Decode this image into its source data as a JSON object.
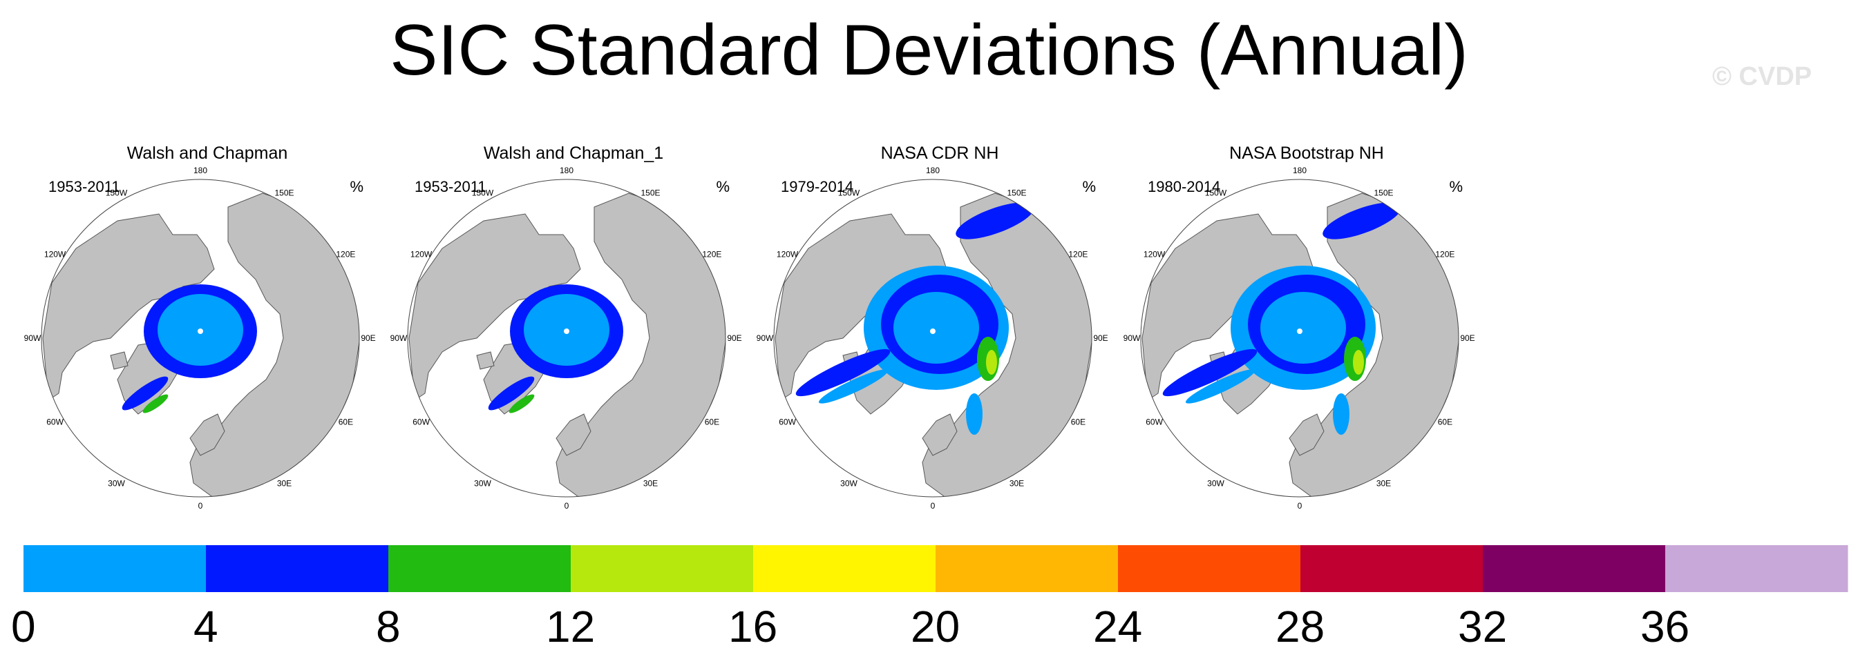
{
  "title": "SIC Standard Deviations (Annual)",
  "watermark": "© CVDP",
  "panels": [
    {
      "title": "Walsh and Chapman",
      "period": "1953-2011",
      "unit": "%"
    },
    {
      "title": "Walsh and Chapman_1",
      "period": "1953-2011",
      "unit": "%"
    },
    {
      "title": "NASA CDR NH",
      "period": "1979-2014",
      "unit": "%"
    },
    {
      "title": "NASA Bootstrap NH",
      "period": "1980-2014",
      "unit": "%"
    }
  ],
  "longitude_labels": [
    "180",
    "150E",
    "120E",
    "90E",
    "60E",
    "30E",
    "0",
    "30W",
    "60W",
    "90W",
    "120W",
    "150W"
  ],
  "colorbar": {
    "levels": [
      "0",
      "4",
      "8",
      "12",
      "16",
      "20",
      "24",
      "28",
      "32",
      "36"
    ],
    "colors": [
      "#00a0ff",
      "#0019ff",
      "#21bb12",
      "#b6e80d",
      "#fff500",
      "#ffb703",
      "#ff4c03",
      "#bf0031",
      "#7e0063",
      "#c8a8d8"
    ]
  },
  "map_colors": {
    "land": "#c0c0c0",
    "ocean": "#ffffff",
    "coast": "#555555"
  }
}
